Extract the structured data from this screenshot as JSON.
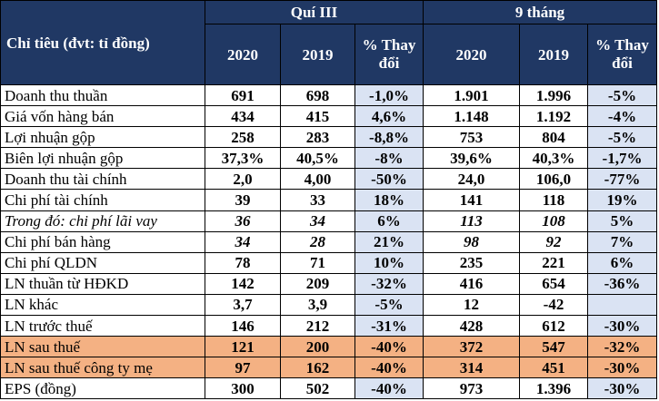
{
  "header": {
    "group_q3": "Quí III",
    "group_9m": "9 tháng",
    "label_col": "Chỉ tiêu (đvt: tỉ đồng)",
    "q3_cols": [
      "2020",
      "2019",
      "% Thay đổi"
    ],
    "m9_cols": [
      "2020",
      "2019",
      "% Thay đổi"
    ]
  },
  "rows": [
    {
      "label": "Doanh thu thuần",
      "q3_2020": "691",
      "q3_2019": "698",
      "q3_chg": "-1,0%",
      "m9_2020": "1.901",
      "m9_2019": "1.996",
      "m9_chg": "-5%"
    },
    {
      "label": "Giá vốn hàng bán",
      "q3_2020": "434",
      "q3_2019": "415",
      "q3_chg": "4,6%",
      "m9_2020": "1.148",
      "m9_2019": "1.192",
      "m9_chg": "-4%"
    },
    {
      "label": "Lợi nhuận gộp",
      "q3_2020": "258",
      "q3_2019": "283",
      "q3_chg": "-8,8%",
      "m9_2020": "753",
      "m9_2019": "804",
      "m9_chg": "-5%"
    },
    {
      "label": "Biên lợi nhuận gộp",
      "q3_2020": "37,3%",
      "q3_2019": "40,5%",
      "q3_chg": "-8%",
      "m9_2020": "39,6%",
      "m9_2019": "40,3%",
      "m9_chg": "-1,7%"
    },
    {
      "label": "Doanh thu tài chính",
      "q3_2020": "2,0",
      "q3_2019": "4,00",
      "q3_chg": "-50%",
      "m9_2020": "24,0",
      "m9_2019": "106,0",
      "m9_chg": "-77%"
    },
    {
      "label": "Chi phí tài chính",
      "q3_2020": "39",
      "q3_2019": "33",
      "q3_chg": "18%",
      "m9_2020": "141",
      "m9_2019": "118",
      "m9_chg": "19%"
    },
    {
      "label": "Trong đó: chi phí lãi vay",
      "q3_2020": "36",
      "q3_2019": "34",
      "q3_chg": "6%",
      "m9_2020": "113",
      "m9_2019": "108",
      "m9_chg": "5%"
    },
    {
      "label": "Chi phí bán hàng",
      "q3_2020": "34",
      "q3_2019": "28",
      "q3_chg": "21%",
      "m9_2020": "98",
      "m9_2019": "92",
      "m9_chg": "7%"
    },
    {
      "label": "Chi phí QLDN",
      "q3_2020": "78",
      "q3_2019": "71",
      "q3_chg": "10%",
      "m9_2020": "235",
      "m9_2019": "221",
      "m9_chg": "6%"
    },
    {
      "label": "LN thuần từ HĐKD",
      "q3_2020": "142",
      "q3_2019": "209",
      "q3_chg": "-32%",
      "m9_2020": "416",
      "m9_2019": "654",
      "m9_chg": "-36%"
    },
    {
      "label": "LN khác",
      "q3_2020": "3,7",
      "q3_2019": "3,9",
      "q3_chg": "-5%",
      "m9_2020": "12",
      "m9_2019": "-42",
      "m9_chg": ""
    },
    {
      "label": "LN trước thuế",
      "q3_2020": "146",
      "q3_2019": "212",
      "q3_chg": "-31%",
      "m9_2020": "428",
      "m9_2019": "612",
      "m9_chg": "-30%"
    },
    {
      "label": "LN sau thuế",
      "q3_2020": "121",
      "q3_2019": "200",
      "q3_chg": "-40%",
      "m9_2020": "372",
      "m9_2019": "547",
      "m9_chg": "-32%"
    },
    {
      "label": "LN sau thuế công ty mẹ",
      "q3_2020": "97",
      "q3_2019": "162",
      "q3_chg": "-40%",
      "m9_2020": "314",
      "m9_2019": "451",
      "m9_chg": "-30%"
    },
    {
      "label": "EPS (đồng)",
      "q3_2020": "300",
      "q3_2019": "502",
      "q3_chg": "-40%",
      "m9_2020": "973",
      "m9_2019": "1.396",
      "m9_chg": "-30%"
    }
  ],
  "colors": {
    "header_bg": "#203864",
    "change_bg": "#dae3f3",
    "highlight_bg": "#f4b183"
  }
}
